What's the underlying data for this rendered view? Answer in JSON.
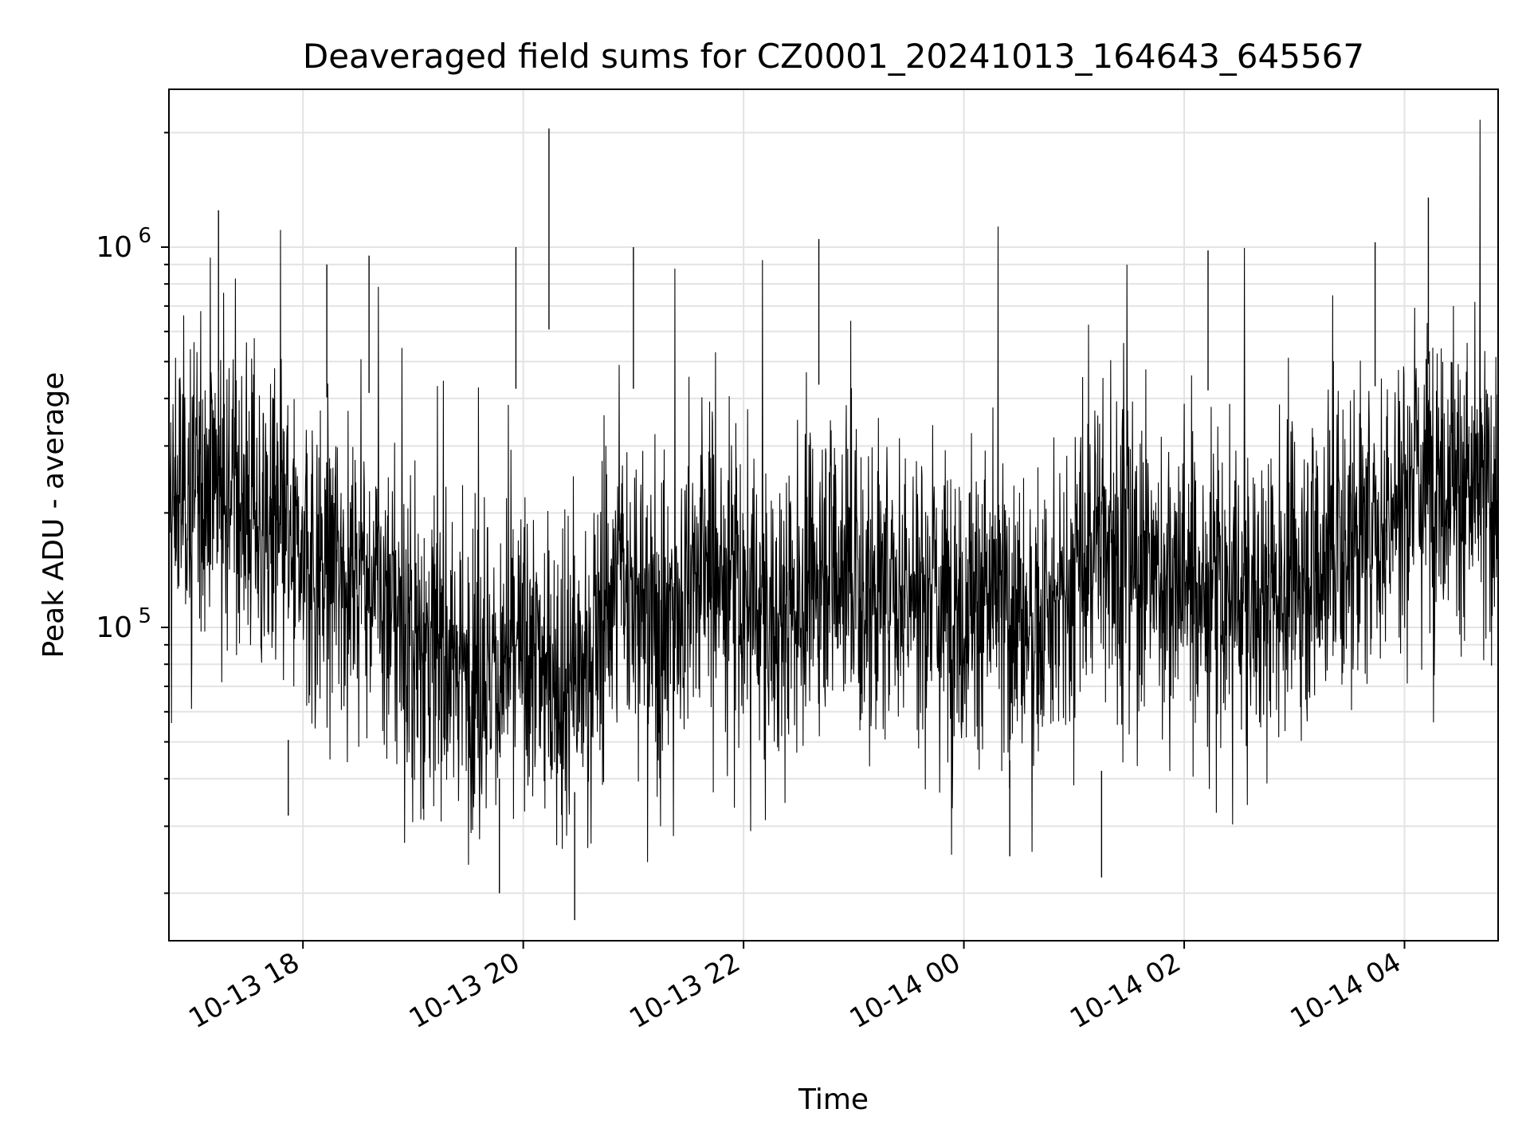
{
  "chart_data": {
    "type": "line",
    "title": "Deaveraged field sums for CZ0001_20241013_164643_645567",
    "xlabel": "Time",
    "ylabel": "Peak ADU - average",
    "x_range": [
      "2024-10-13 16:47",
      "2024-10-14 04:51"
    ],
    "x_ticks": [
      "10-13 18",
      "10-13 20",
      "10-13 22",
      "10-14 00",
      "10-14 02",
      "10-14 04"
    ],
    "y_scale": "log",
    "ylim": [
      15000,
      2600000
    ],
    "y_tick_labels": [
      {
        "base": "10",
        "exp": "5"
      },
      {
        "base": "10",
        "exp": "6"
      }
    ],
    "grid": true,
    "line_color": "#000000",
    "series": [
      {
        "x_start": "2024-10-13 16:47",
        "x_end": "2024-10-14 04:51",
        "values": [
          200000,
          230000,
          250000,
          280000,
          230000,
          200000,
          180000,
          160000,
          150000,
          140000,
          150000,
          145000,
          135000,
          120000,
          100000,
          90000,
          85000,
          80000,
          78000,
          75000,
          80000,
          85000,
          80000,
          75000,
          70000,
          78000,
          120000,
          140000,
          110000,
          100000,
          110000,
          130000,
          150000,
          140000,
          120000,
          110000,
          100000,
          115000,
          125000,
          160000,
          150000,
          130000,
          120000,
          125000,
          130000,
          125000,
          120000,
          115000,
          120000,
          118000,
          110000,
          105000,
          100000,
          105000,
          140000,
          180000,
          170000,
          150000,
          140000,
          135000,
          140000,
          130000,
          125000,
          120000,
          115000,
          120000,
          130000,
          140000,
          150000,
          160000,
          175000,
          170000,
          180000,
          220000,
          250000,
          260000,
          270000,
          230000,
          220000,
          240000
        ]
      }
    ],
    "spikes": [
      {
        "x": "2024-10-13 17:14",
        "y": 1250000
      },
      {
        "x": "2024-10-13 20:14",
        "y": 2050000
      },
      {
        "x": "2024-10-13 19:56",
        "y": 1000000
      },
      {
        "x": "2024-10-13 22:41",
        "y": 1050000
      },
      {
        "x": "2024-10-14 02:13",
        "y": 980000
      },
      {
        "x": "2024-10-14 03:44",
        "y": 1030000
      },
      {
        "x": "2024-10-14 04:13",
        "y": 1350000
      },
      {
        "x": "2024-10-13 18:13",
        "y": 900000
      },
      {
        "x": "2024-10-13 18:36",
        "y": 950000
      },
      {
        "x": "2024-10-13 21:00",
        "y": 1000000
      },
      {
        "x": "2024-10-13 20:28",
        "y": 17000
      },
      {
        "x": "2024-10-13 19:47",
        "y": 20000
      },
      {
        "x": "2024-10-14 01:15",
        "y": 22000
      },
      {
        "x": "2024-10-13 17:52",
        "y": 32000
      },
      {
        "x": "2024-10-14 00:25",
        "y": 25000
      }
    ]
  }
}
